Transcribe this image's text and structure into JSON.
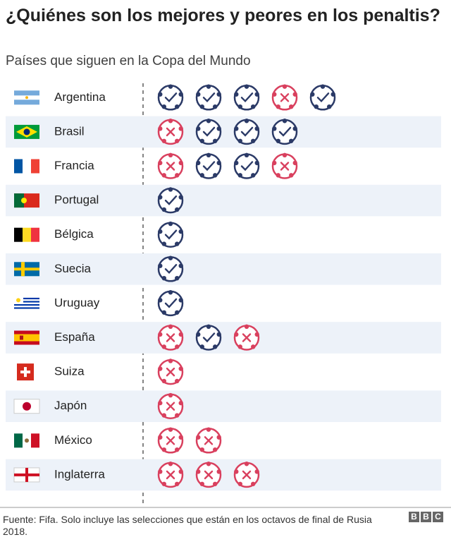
{
  "header": {
    "title": "¿Quiénes son los mejores y peores en los penaltis?",
    "subtitle": "Países que siguen en la Copa del Mundo"
  },
  "rows": [
    {
      "country": "Argentina",
      "won": [
        true,
        true,
        true,
        false,
        true
      ]
    },
    {
      "country": "Brasil",
      "won": [
        false,
        true,
        true,
        true
      ]
    },
    {
      "country": "Francia",
      "won": [
        false,
        true,
        true,
        false
      ]
    },
    {
      "country": "Portugal",
      "won": [
        true
      ]
    },
    {
      "country": "Bélgica",
      "won": [
        true
      ]
    },
    {
      "country": "Suecia",
      "won": [
        true
      ]
    },
    {
      "country": "Uruguay",
      "won": [
        true
      ]
    },
    {
      "country": "España",
      "won": [
        false,
        true,
        false
      ]
    },
    {
      "country": "Suiza",
      "won": [
        false
      ]
    },
    {
      "country": "Japón",
      "won": [
        false
      ]
    },
    {
      "country": "México",
      "won": [
        false,
        false
      ]
    },
    {
      "country": "Inglaterra",
      "won": [
        false,
        false,
        false
      ]
    }
  ],
  "footer": {
    "source": "Fuente: Fifa. Solo incluye las selecciones que están en los octavos de final de Rusia 2018.",
    "logo": [
      "B",
      "B",
      "C"
    ]
  }
}
